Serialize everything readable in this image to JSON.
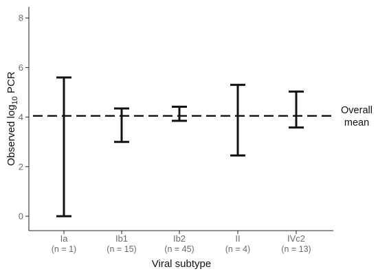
{
  "chart_data": {
    "type": "errorbar",
    "categories": [
      "Ia",
      "Ib1",
      "Ib2",
      "II",
      "IVc2"
    ],
    "category_sublabels": [
      "(n = 1)",
      "(n = 15)",
      "(n = 45)",
      "(n = 4)",
      "(n = 13)"
    ],
    "series": [
      {
        "lower": [
          0.0,
          3.0,
          3.85,
          2.45,
          3.58
        ],
        "upper": [
          5.6,
          4.35,
          4.42,
          5.3,
          5.03
        ]
      }
    ],
    "reference_line": {
      "value": 4.05,
      "style": "dashed",
      "label_line1": "Overall",
      "label_line2": "mean"
    },
    "y_ticks": [
      0,
      2,
      4,
      6,
      8
    ],
    "ylim": [
      -0.6,
      8.4
    ],
    "xlabel": "Viral subtype",
    "ylabel": "Observed log10 PCR",
    "ylabel_parts": {
      "main": "Observed log",
      "sub": "10",
      "suffix": " PCR"
    },
    "grid": false,
    "colors": {
      "bars": "#111111",
      "axis": "#222222",
      "ticks": "#6b6b6b"
    }
  }
}
